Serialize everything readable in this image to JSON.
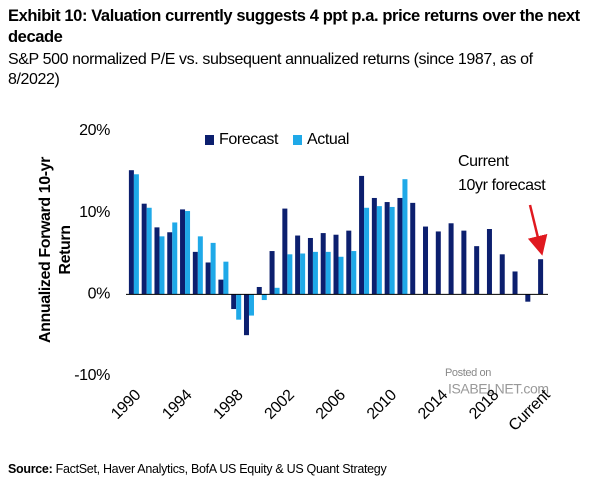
{
  "chart_data": {
    "type": "bar",
    "title": "Exhibit 10: Valuation currently suggests 4 ppt p.a. price returns over the next decade",
    "subtitle": "S&P 500 normalized P/E vs. subsequent annualized returns (since 1987, as of 8/2022)",
    "ylabel": [
      "Annualized Forward 10-yr",
      "Return"
    ],
    "categories": [
      "1990",
      null,
      null,
      null,
      "1994",
      null,
      null,
      null,
      "1998",
      null,
      null,
      null,
      "2002",
      null,
      null,
      null,
      "2006",
      null,
      null,
      null,
      "2010",
      null,
      null,
      null,
      "2014",
      null,
      null,
      null,
      "2018",
      null,
      null,
      null,
      "Current"
    ],
    "series": [
      {
        "name": "Forecast",
        "color": "#0c1f6e",
        "values": [
          15.2,
          11.1,
          8.2,
          7.6,
          10.4,
          5.2,
          3.9,
          1.8,
          -1.8,
          -5.0,
          0.9,
          5.3,
          10.5,
          7.2,
          6.9,
          7.5,
          7.3,
          7.8,
          14.5,
          11.8,
          11.3,
          11.8,
          11.2,
          8.3,
          7.7,
          8.7,
          7.8,
          5.9,
          8.0,
          4.9,
          2.8,
          -0.9,
          4.3
        ]
      },
      {
        "name": "Actual",
        "color": "#1fa9e8",
        "values": [
          14.7,
          10.6,
          7.1,
          8.8,
          10.2,
          7.1,
          6.3,
          4.0,
          -3.1,
          -2.6,
          -0.7,
          0.8,
          4.9,
          5.0,
          5.2,
          5.2,
          4.6,
          5.3,
          10.6,
          10.8,
          10.7,
          14.1,
          null,
          null,
          null,
          null,
          null,
          null,
          null,
          null,
          null,
          null,
          null
        ]
      }
    ],
    "ylim": [
      -10,
      20
    ],
    "yticks": [
      {
        "value": -10,
        "label": "-10%"
      },
      {
        "value": 0,
        "label": "0%"
      },
      {
        "value": 10,
        "label": "10%"
      },
      {
        "value": 20,
        "label": "20%"
      }
    ],
    "grid": false,
    "annotation": [
      "Current",
      "10yr forecast"
    ],
    "watermark": [
      "Posted on",
      "ISABELNET.com"
    ],
    "source_label": "Source:",
    "source": "FactSet, Haver Analytics, BofA US Equity & US Quant Strategy"
  }
}
